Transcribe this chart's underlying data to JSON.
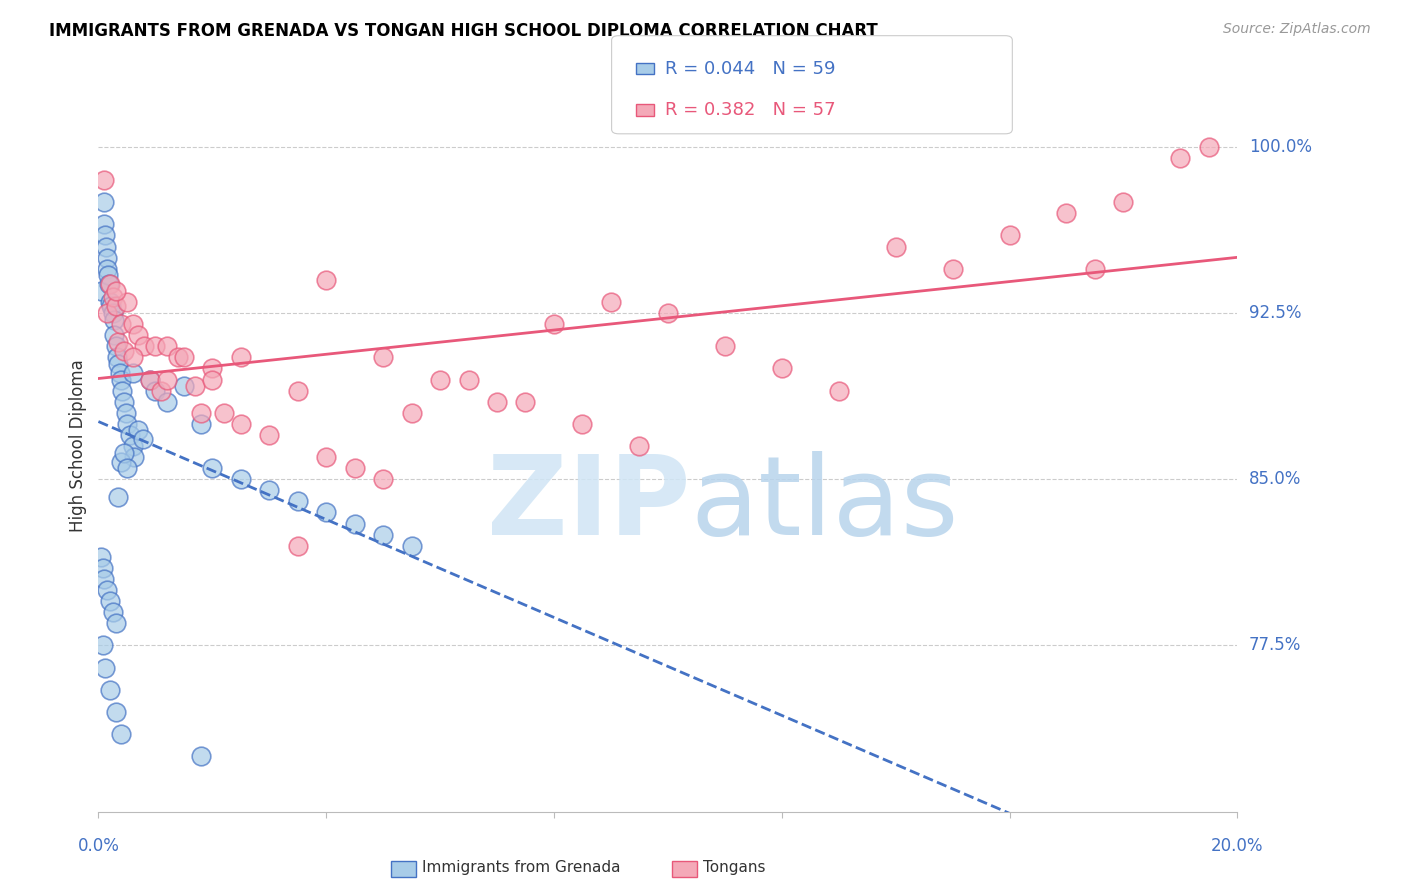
{
  "title": "IMMIGRANTS FROM GRENADA VS TONGAN HIGH SCHOOL DIPLOMA CORRELATION CHART",
  "source": "Source: ZipAtlas.com",
  "ylabel": "High School Diploma",
  "yticks": [
    77.5,
    85.0,
    92.5,
    100.0
  ],
  "ytick_labels": [
    "77.5%",
    "85.0%",
    "92.5%",
    "100.0%"
  ],
  "xlim": [
    0.0,
    20.0
  ],
  "ylim": [
    70.0,
    103.0
  ],
  "legend_R1": "R = 0.044",
  "legend_N1": "N = 59",
  "legend_R2": "R = 0.382",
  "legend_N2": "N = 57",
  "color_blue": "#a8cce8",
  "color_pink": "#f4a9b8",
  "color_trendline_blue": "#4472c4",
  "color_trendline_pink": "#e8587a",
  "color_axis_labels": "#4472c4",
  "grenada_x": [
    0.05,
    0.1,
    0.1,
    0.12,
    0.13,
    0.15,
    0.15,
    0.17,
    0.18,
    0.2,
    0.22,
    0.25,
    0.27,
    0.28,
    0.3,
    0.32,
    0.35,
    0.38,
    0.4,
    0.42,
    0.45,
    0.48,
    0.5,
    0.55,
    0.6,
    0.62,
    0.7,
    0.78,
    0.9,
    1.0,
    1.2,
    1.5,
    1.8,
    2.0,
    2.5,
    3.0,
    3.5,
    4.0,
    4.5,
    5.0,
    5.5,
    0.05,
    0.08,
    0.1,
    0.15,
    0.2,
    0.25,
    0.3,
    0.35,
    0.4,
    0.45,
    0.5,
    0.6,
    0.08,
    0.12,
    0.2,
    0.3,
    0.4,
    1.8
  ],
  "grenada_y": [
    93.5,
    97.5,
    96.5,
    96.0,
    95.5,
    95.0,
    94.5,
    94.2,
    93.8,
    93.0,
    92.8,
    92.5,
    92.2,
    91.5,
    91.0,
    90.5,
    90.2,
    89.8,
    89.5,
    89.0,
    88.5,
    88.0,
    87.5,
    87.0,
    86.5,
    86.0,
    87.2,
    86.8,
    89.5,
    89.0,
    88.5,
    89.2,
    87.5,
    85.5,
    85.0,
    84.5,
    84.0,
    83.5,
    83.0,
    82.5,
    82.0,
    81.5,
    81.0,
    80.5,
    80.0,
    79.5,
    79.0,
    78.5,
    84.2,
    85.8,
    86.2,
    85.5,
    89.8,
    77.5,
    76.5,
    75.5,
    74.5,
    73.5,
    72.5
  ],
  "tongan_x": [
    0.1,
    0.15,
    0.2,
    0.25,
    0.3,
    0.35,
    0.4,
    0.45,
    0.5,
    0.6,
    0.7,
    0.8,
    0.9,
    1.0,
    1.1,
    1.2,
    1.4,
    1.5,
    1.7,
    1.8,
    2.0,
    2.2,
    2.5,
    3.0,
    3.5,
    3.5,
    4.0,
    4.5,
    5.0,
    5.5,
    6.0,
    6.5,
    7.0,
    7.5,
    8.0,
    8.5,
    9.0,
    9.5,
    10.0,
    11.0,
    12.0,
    13.0,
    14.0,
    15.0,
    16.0,
    17.0,
    17.5,
    18.0,
    19.0,
    19.5,
    0.3,
    0.6,
    1.2,
    2.5,
    4.0,
    5.0,
    2.0
  ],
  "tongan_y": [
    98.5,
    92.5,
    93.8,
    93.2,
    92.8,
    91.2,
    92.0,
    90.8,
    93.0,
    92.0,
    91.5,
    91.0,
    89.5,
    91.0,
    89.0,
    91.0,
    90.5,
    90.5,
    89.2,
    88.0,
    90.0,
    88.0,
    87.5,
    87.0,
    89.0,
    82.0,
    86.0,
    85.5,
    85.0,
    88.0,
    89.5,
    89.5,
    88.5,
    88.5,
    92.0,
    87.5,
    93.0,
    86.5,
    92.5,
    91.0,
    90.0,
    89.0,
    95.5,
    94.5,
    96.0,
    97.0,
    94.5,
    97.5,
    99.5,
    100.0,
    93.5,
    90.5,
    89.5,
    90.5,
    94.0,
    90.5,
    89.5
  ],
  "watermark_zip_color": "#cde0f0",
  "watermark_atlas_color": "#b8d0e8"
}
